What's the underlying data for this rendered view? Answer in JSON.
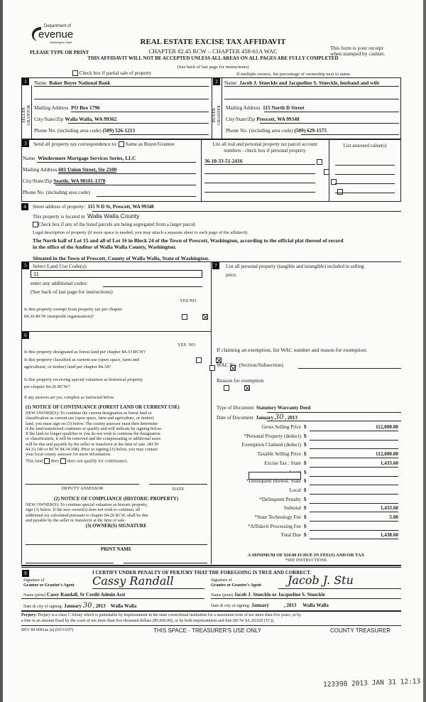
{
  "header": {
    "logo_dept": "Department of",
    "logo_name": "evenue",
    "logo_state": "Washington State",
    "please": "PLEASE TYPE OR PRINT",
    "title": "REAL ESTATE EXCISE TAX AFFIDAVIT",
    "chapter": "CHAPTER 82.45 RCW – CHAPTER 458-61A WAC",
    "warning": "THIS AFFIDAVIT WILL NOT BE ACCEPTED UNLESS ALL AREAS ON ALL PAGES ARE FULLY COMPLETED",
    "see_back": "(See back of last page for instructions)",
    "receipt1": "This form is your receipt",
    "receipt2": "when stamped by cashier.",
    "partial_sale": "Check box if partial sale of property",
    "multiple_owners": "If multiple owners, list percentage of ownership next to name."
  },
  "seller": {
    "num": "1",
    "side_label1": "SELLER",
    "side_label2": "GRANTOR",
    "name_label": "Name",
    "name": "Baker Boyer National Bank",
    "mail_label": "Mailing Address",
    "mail": "PO Box 1796",
    "city_label": "City/State/Zip",
    "city": "Walla Walla, WA  99362",
    "phone_label": "Phone No. (including area code)",
    "phone": "(509) 526-1213"
  },
  "buyer": {
    "num": "2",
    "side_label1": "BUYER",
    "side_label2": "GRANTEE",
    "name_label": "Name",
    "name": "Jacob J. Stueckle and Jacqueline S. Stueckle, husband and wife",
    "mail_label": "Mailing Address",
    "mail": "115 North D Street",
    "city_label": "City/State/Zip",
    "city": "Prescott, WA  99348",
    "phone_label": "Phone No. (including area code)",
    "phone": "(509) 629-1575"
  },
  "correspondence": {
    "num": "3",
    "label": "Send all property tax correspondence to:",
    "same_as": "Same as Buyer/Grantee",
    "name_label": "Name",
    "name": "Windermere Mortgage Services Series, LLC",
    "mail_label": "Mailing Address",
    "mail": "601 Union Street, Ste 2100",
    "city_label": "City/State/Zip",
    "city": "Seattle, WA 98101-1378",
    "phone_label": "Phone No. (including area code)",
    "phone": ""
  },
  "parcels": {
    "header1": "List all real and personal property tax parcel account",
    "header2": "numbers - check box if personal property",
    "assessed_header": "List assessed value(s)",
    "items": [
      "36-10-33-51-2416",
      "",
      "",
      ""
    ]
  },
  "property": {
    "num": "4",
    "street_label": "Street address of property:",
    "street": "115 N D St, Prescott, WA  99348",
    "located_label": "This property is located in",
    "county": "Walla Walla County",
    "segregated": "Check box if any of the listed parcels are being segregated from a larger parcel.",
    "legal_label": "Legal description of property (if more space is needed, you may attach a separate sheet to each page of the affidavit)",
    "legal1": "The North half of Lot 15 and all of Lot 16 in Block 24 of the Town of Prescott, Washington, according to the official plat thereof of record",
    "legal2": "in the office of the Auditor of Walla Walla County, Washington.",
    "situated": "Situated in the Town of Prescott, County of Walla Walla, State of Washington."
  },
  "land_use": {
    "num": "5",
    "label": "Select Land Use Code(s):",
    "code": "11",
    "additional": "enter any additional codes:",
    "see_back": "(See back of last page for instructions)",
    "yes": "YES",
    "no": "NO",
    "q_exempt1": "Is this property exempt from property tax per chapter",
    "q_exempt2": "84.36 RCW (nonprofit organization)?"
  },
  "section6": {
    "num": "6",
    "yes": "YES",
    "no": "NO",
    "q_forest": "Is this property designated as forest land per chapter 84.33 RCW?",
    "q_current1": "Is this property classified as current use (open space, farm and",
    "q_current2": "agricultural, or timber) land per chapter 84.34?",
    "q_hist1": "Is this property receiving special valuation as historical property",
    "q_hist2": "per chapter 84.26 RCW?",
    "if_yes": "If any answers are yes, complete as instructed below.",
    "n1_title": "(1) NOTICE OF CONTINUANCE (FOREST LAND OR CURRENT USE)",
    "n1_lines": [
      "NEW OWNER(S): To continue the current designation as forest land or",
      "classification as current use (open space, farm and agriculture, or timber)",
      "land, you must sign on (3) below. The county assessor must then determine",
      "if the land transferred continues to qualify and will indicate by signing below.",
      "If the land no longer qualifies or you do not wish to continue the designation",
      "or classification, it will be removed and the compensating or additional taxes",
      "will be due and payable by the seller or transferor at the time of sale. (RCW",
      "84.33.140 or RCW 84.34.108). Prior to signing (3) below, you may contact",
      "your local county assessor for more information."
    ],
    "this_land": "This land",
    "does": "does",
    "does_not": "does not  qualify for continuance.",
    "deputy": "DEPUTY ASSESSOR",
    "date": "DATE",
    "n2_title": "(2) NOTICE OF COMPLIANCE (HISTORIC PROPERTY)",
    "n2_lines": [
      "NEW OWNER(S): To continue special valuation as historic property,",
      "sign (3) below. If the new owner(s) does not wish to continue, all",
      "additional tax calculated pursuant to chapter 84.26 RCW, shall be due",
      "and payable by the seller or transferor at the time of sale."
    ],
    "n3_title": "(3) OWNER(S) SIGNATURE",
    "print_name": "PRINT NAME"
  },
  "section7": {
    "num": "7",
    "label1": "List all personal property (tangible and intangible) included in selling",
    "label2": "price.",
    "exemption": "If claiming an exemption, list WAC number and reason for exemption:",
    "wac": "WAC No. (Section/Subsection)",
    "reason": "Reason for exemption",
    "doc_type_label": "Type of Document",
    "doc_type": "Statutory Warranty Deed",
    "doc_date_label": "Date of Document",
    "doc_month": "January",
    "doc_day": "30",
    "doc_year": ", 2013",
    "rows": [
      {
        "label": "Gross Selling Price",
        "value": "112,000.00"
      },
      {
        "label": "*Personal Property (deduct)",
        "value": ""
      },
      {
        "label": "Exemption Claimed (deduct)",
        "value": ""
      },
      {
        "label": "Taxable Selling Price",
        "value": "112,000.00"
      },
      {
        "label": "Excise Tax : State",
        "value": "1,433.60"
      },
      {
        "label": "Local",
        "value": ""
      },
      {
        "label": "*Delinquent Interest:  State",
        "value": ""
      },
      {
        "label": "Local",
        "value": ""
      },
      {
        "label": "*Delinquent Penalty",
        "value": ""
      },
      {
        "label": "Subtotal",
        "value": "1,433.60"
      },
      {
        "label": "*State Technology Fee",
        "value": "5.00"
      },
      {
        "label": "*Affidavit Processing Fee",
        "value": ""
      },
      {
        "label": "Total Due",
        "value": "1,438.60"
      }
    ],
    "dollar": "$",
    "minimum": "A MINIMUM OF $10.00 IS DUE IN FEE(S) AND/OR TAX",
    "see_instr": "*SEE INSTRUCTIONS"
  },
  "section8": {
    "num": "8",
    "certify": "I CERTIFY UNDER PENALTY OF PERJURY THAT THE FOREGOING IS TRUE AND CORRECT.",
    "sig_of": "Signature of",
    "grantor_agent": "Grantor or Grantor's Agent",
    "grantee_agent": "Grantee or Grantee's Agent",
    "grantor_sig": "Cassy Randall",
    "grantee_sig": "Jacob J. Stu",
    "name_print": "Name (print)",
    "grantor_name": "Cassy Randall, Sr Credit Admin Asst",
    "grantee_name": "Jacob J. Stueckle or Jacqueline S. Stueckle",
    "date_city": "Date & city of signing:",
    "grantor_month": "January",
    "grantor_day": "30",
    "grantor_year": ", 2013",
    "grantor_city": "Walla Walla",
    "grantee_month": "January",
    "grantee_year": ", 2013",
    "grantee_city": "Walla Walla"
  },
  "footer": {
    "perjury_label": "Perjury:",
    "perjury1": "Perjury is a class C felony which is punishable by imprisonment in the state correctional institution for a maximum term of not more than five years, or by",
    "perjury2": "a fine in an amount fixed by the court of not more than five thousand dollars ($5,000.00), or by both imprisonment and fine (RCW 9A.20.020 (1C)).",
    "rev": "REV 84 0001ae (a) (03/13/07)",
    "treasurer_use": "THIS SPACE - TREASURER'S USE ONLY",
    "county_treasurer": "COUNTY TREASURER",
    "stamp": "123398 2013 JAN 31 12:13"
  }
}
